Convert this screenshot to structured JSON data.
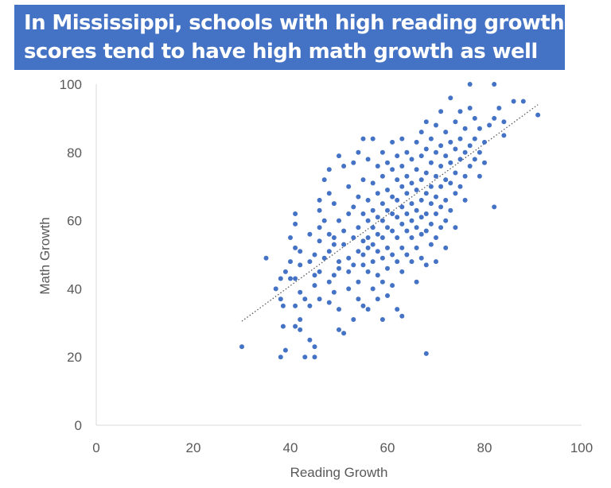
{
  "chart_data": {
    "type": "scatter",
    "title": "In Mississippi, schools with high reading growth scores tend to have high math growth as well",
    "title_lines": [
      "In Mississippi, schools with high reading growth",
      "scores tend to have high math growth as well"
    ],
    "xlabel": "Reading Growth",
    "ylabel": "Math Growth",
    "xlim": [
      0,
      100
    ],
    "ylim": [
      0,
      100
    ],
    "xticks": [
      0,
      20,
      40,
      60,
      80,
      100
    ],
    "yticks": [
      0,
      20,
      40,
      60,
      80,
      100
    ],
    "grid": false,
    "legend": "none",
    "trendline": {
      "style": "dotted",
      "x": [
        30,
        91
      ],
      "y": [
        30.5,
        94
      ]
    },
    "colors": {
      "points": "#4472c4",
      "trendline": "#595959",
      "title_background": "#4472c4",
      "title_text": "#ffffff",
      "axis_text": "#595959"
    },
    "points": [
      [
        30,
        23
      ],
      [
        35,
        49
      ],
      [
        37,
        40
      ],
      [
        38,
        20
      ],
      [
        38.5,
        29
      ],
      [
        38.5,
        35
      ],
      [
        39,
        22
      ],
      [
        38,
        43
      ],
      [
        39,
        45
      ],
      [
        38,
        37
      ],
      [
        40,
        43
      ],
      [
        40,
        48
      ],
      [
        40,
        55
      ],
      [
        41,
        59
      ],
      [
        41,
        62
      ],
      [
        41,
        52
      ],
      [
        41,
        43
      ],
      [
        41,
        35
      ],
      [
        41,
        29
      ],
      [
        42,
        39
      ],
      [
        42,
        47
      ],
      [
        42,
        31
      ],
      [
        42,
        51
      ],
      [
        42,
        28
      ],
      [
        43,
        20
      ],
      [
        43,
        37
      ],
      [
        44,
        25
      ],
      [
        44,
        35
      ],
      [
        44,
        56
      ],
      [
        44,
        48
      ],
      [
        45,
        23
      ],
      [
        45,
        20
      ],
      [
        45,
        41
      ],
      [
        45,
        44
      ],
      [
        45,
        50
      ],
      [
        46,
        58
      ],
      [
        46,
        66
      ],
      [
        46,
        63
      ],
      [
        46,
        45
      ],
      [
        46,
        54
      ],
      [
        46,
        37
      ],
      [
        47,
        72
      ],
      [
        47,
        49
      ],
      [
        47,
        60
      ],
      [
        48,
        36
      ],
      [
        48,
        42
      ],
      [
        48,
        51
      ],
      [
        48,
        56
      ],
      [
        48,
        68
      ],
      [
        48,
        75
      ],
      [
        49,
        65
      ],
      [
        49,
        53
      ],
      [
        49,
        44
      ],
      [
        49,
        39
      ],
      [
        49,
        55
      ],
      [
        50,
        79
      ],
      [
        50,
        28
      ],
      [
        50,
        60
      ],
      [
        50,
        46
      ],
      [
        50,
        34
      ],
      [
        50,
        48
      ],
      [
        51,
        76
      ],
      [
        51,
        53
      ],
      [
        51,
        27
      ],
      [
        51,
        57
      ],
      [
        52,
        62
      ],
      [
        52,
        45
      ],
      [
        52,
        70
      ],
      [
        52,
        49
      ],
      [
        52,
        40
      ],
      [
        53,
        77
      ],
      [
        53,
        64
      ],
      [
        53,
        55
      ],
      [
        53,
        47
      ],
      [
        53,
        31
      ],
      [
        54,
        80
      ],
      [
        54,
        67
      ],
      [
        54,
        58
      ],
      [
        54,
        51
      ],
      [
        54,
        42
      ],
      [
        54,
        37
      ],
      [
        55,
        84
      ],
      [
        55,
        72
      ],
      [
        55,
        62
      ],
      [
        55,
        54
      ],
      [
        55,
        50
      ],
      [
        55,
        47
      ],
      [
        55,
        35
      ],
      [
        56,
        78
      ],
      [
        56,
        66
      ],
      [
        56,
        60
      ],
      [
        56,
        55
      ],
      [
        56,
        52
      ],
      [
        56,
        45
      ],
      [
        56,
        34
      ],
      [
        57,
        84
      ],
      [
        57,
        71
      ],
      [
        57,
        63
      ],
      [
        57,
        58
      ],
      [
        57,
        53
      ],
      [
        57,
        48
      ],
      [
        57,
        40
      ],
      [
        58,
        76
      ],
      [
        58,
        68
      ],
      [
        58,
        61
      ],
      [
        58,
        56
      ],
      [
        58,
        51
      ],
      [
        58,
        44
      ],
      [
        58,
        37
      ],
      [
        59,
        80
      ],
      [
        59,
        73
      ],
      [
        59,
        65
      ],
      [
        59,
        60
      ],
      [
        59,
        55
      ],
      [
        59,
        49
      ],
      [
        59,
        42
      ],
      [
        59,
        31
      ],
      [
        60,
        77
      ],
      [
        60,
        69
      ],
      [
        60,
        63
      ],
      [
        60,
        58
      ],
      [
        60,
        52
      ],
      [
        60,
        46
      ],
      [
        60,
        38
      ],
      [
        61,
        83
      ],
      [
        61,
        75
      ],
      [
        61,
        67
      ],
      [
        61,
        62
      ],
      [
        61,
        57
      ],
      [
        61,
        50
      ],
      [
        61,
        41
      ],
      [
        62,
        79
      ],
      [
        62,
        72
      ],
      [
        62,
        66
      ],
      [
        62,
        61
      ],
      [
        62,
        55
      ],
      [
        62,
        48
      ],
      [
        62,
        34
      ],
      [
        63,
        84
      ],
      [
        63,
        76
      ],
      [
        63,
        70
      ],
      [
        63,
        64
      ],
      [
        63,
        59
      ],
      [
        63,
        52
      ],
      [
        63,
        45
      ],
      [
        63,
        32
      ],
      [
        64,
        80
      ],
      [
        64,
        73
      ],
      [
        64,
        68
      ],
      [
        64,
        62
      ],
      [
        64,
        57
      ],
      [
        64,
        50
      ],
      [
        65,
        78
      ],
      [
        65,
        71
      ],
      [
        65,
        65
      ],
      [
        65,
        60
      ],
      [
        65,
        55
      ],
      [
        65,
        48
      ],
      [
        66,
        83
      ],
      [
        66,
        75
      ],
      [
        66,
        69
      ],
      [
        66,
        63
      ],
      [
        66,
        58
      ],
      [
        66,
        52
      ],
      [
        66,
        42
      ],
      [
        67,
        86
      ],
      [
        67,
        79
      ],
      [
        67,
        72
      ],
      [
        67,
        66
      ],
      [
        67,
        61
      ],
      [
        67,
        56
      ],
      [
        67,
        49
      ],
      [
        68,
        89
      ],
      [
        68,
        81
      ],
      [
        68,
        74
      ],
      [
        68,
        68
      ],
      [
        68,
        62
      ],
      [
        68,
        57
      ],
      [
        68,
        47
      ],
      [
        68,
        21
      ],
      [
        69,
        84
      ],
      [
        69,
        77
      ],
      [
        69,
        70
      ],
      [
        69,
        65
      ],
      [
        69,
        59
      ],
      [
        69,
        53
      ],
      [
        70,
        88
      ],
      [
        70,
        80
      ],
      [
        70,
        73
      ],
      [
        70,
        67
      ],
      [
        70,
        62
      ],
      [
        70,
        55
      ],
      [
        70,
        48
      ],
      [
        71,
        92
      ],
      [
        71,
        82
      ],
      [
        71,
        76
      ],
      [
        71,
        70
      ],
      [
        71,
        64
      ],
      [
        71,
        58
      ],
      [
        72,
        86
      ],
      [
        72,
        79
      ],
      [
        72,
        72
      ],
      [
        72,
        66
      ],
      [
        72,
        60
      ],
      [
        72,
        52
      ],
      [
        73,
        96
      ],
      [
        73,
        83
      ],
      [
        73,
        77
      ],
      [
        73,
        71
      ],
      [
        73,
        63
      ],
      [
        74,
        89
      ],
      [
        74,
        81
      ],
      [
        74,
        74
      ],
      [
        74,
        68
      ],
      [
        74,
        58
      ],
      [
        75,
        92
      ],
      [
        75,
        84
      ],
      [
        75,
        78
      ],
      [
        75,
        70
      ],
      [
        76,
        87
      ],
      [
        76,
        80
      ],
      [
        76,
        73
      ],
      [
        76,
        66
      ],
      [
        77,
        100
      ],
      [
        77,
        93
      ],
      [
        77,
        82
      ],
      [
        77,
        76
      ],
      [
        78,
        90
      ],
      [
        78,
        84
      ],
      [
        78,
        78
      ],
      [
        79,
        87
      ],
      [
        79,
        80
      ],
      [
        79,
        73
      ],
      [
        80,
        83
      ],
      [
        80,
        77
      ],
      [
        81,
        88
      ],
      [
        82,
        64
      ],
      [
        82,
        90
      ],
      [
        82,
        100
      ],
      [
        83,
        93
      ],
      [
        84,
        89
      ],
      [
        84,
        85
      ],
      [
        86,
        95
      ],
      [
        88,
        95
      ],
      [
        91,
        91
      ]
    ]
  }
}
